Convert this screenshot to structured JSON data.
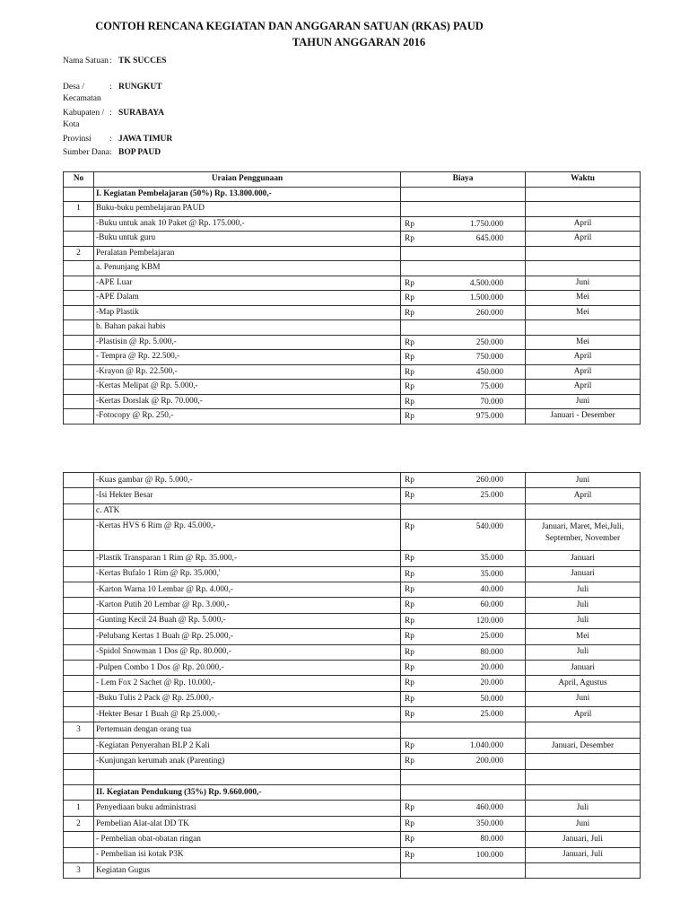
{
  "title": "CONTOH RENCANA KEGIATAN DAN ANGGARAN SATUAN (RKAS) PAUD",
  "subtitle": "TAHUN ANGGARAN 2016",
  "info": [
    {
      "label": "Nama Satuan",
      "value": "TK SUCCES"
    },
    {
      "label": "Desa / Kecamatan",
      "value": "RUNGKUT"
    },
    {
      "label": "Kabupaten / Kota",
      "value": "SURABAYA"
    },
    {
      "label": "Provinsi",
      "value": "JAWA TIMUR"
    },
    {
      "label": "Sumber Dana",
      "value": "BOP PAUD"
    }
  ],
  "colon": ":",
  "headers": {
    "no": "No",
    "uraian": "Uraian Penggunaan",
    "biaya": "Biaya",
    "waktu": "Waktu"
  },
  "table1": [
    {
      "no": "",
      "desc": "I. Kegiatan Pembelajaran (50%) Rp. 13.800.000,-",
      "bold": true
    },
    {
      "no": "1",
      "desc": "Buku-buku pembelajaran PAUD"
    },
    {
      "no": "",
      "desc": "-Buku untuk anak 10  Paket @ Rp. 175.000,-",
      "rp": "Rp",
      "amount": "1.750.000",
      "time": "April"
    },
    {
      "no": "",
      "desc": "-Buku untuk guru",
      "rp": "Rp",
      "amount": "645.000",
      "time": "April"
    },
    {
      "no": "2",
      "desc": "Peralatan Pembelajaran"
    },
    {
      "no": "",
      "desc": "a. Penunjang KBM"
    },
    {
      "no": "",
      "desc": "-APE Luar",
      "rp": "Rp",
      "amount": "4.500.000",
      "time": "Juni"
    },
    {
      "no": "",
      "desc": "-APE Dalam",
      "rp": "Rp",
      "amount": "1.500.000",
      "time": "Mei"
    },
    {
      "no": "",
      "desc": "-Map Plastik",
      "rp": "Rp",
      "amount": "260.000",
      "time": "Mei"
    },
    {
      "no": "",
      "desc": "b. Bahan pakai habis"
    },
    {
      "no": "",
      "desc": "-Plastisin @ Rp. 5.000,-",
      "rp": "Rp",
      "amount": "250.000",
      "time": "Mei"
    },
    {
      "no": "",
      "desc": "- Tempra @ Rp. 22.500,-",
      "rp": "Rp",
      "amount": "750.000",
      "time": "April"
    },
    {
      "no": "",
      "desc": "-Krayon @ Rp. 22.500,-",
      "rp": "Rp",
      "amount": "450.000",
      "time": "April"
    },
    {
      "no": "",
      "desc": "-Kertas Melipat @ Rp. 5.000,-",
      "rp": "Rp",
      "amount": "75.000",
      "time": "April"
    },
    {
      "no": "",
      "desc": "-Kertas Dorslak @ Rp. 70.000,-",
      "rp": "Rp",
      "amount": "70.000",
      "time": "Juni"
    },
    {
      "no": "",
      "desc": "-Fotocopy @ Rp. 250,-",
      "rp": "Rp",
      "amount": "975.000",
      "time": "Januari - Desember"
    }
  ],
  "table2": [
    {
      "no": "",
      "desc": "-Kuas gambar @ Rp. 5.000,-",
      "rp": "Rp",
      "amount": "260.000",
      "time": "Juni"
    },
    {
      "no": "",
      "desc": "-Isi Hekter Besar",
      "rp": "Rp",
      "amount": "25.000",
      "time": "April"
    },
    {
      "no": "",
      "desc": "c. ATK"
    },
    {
      "no": "",
      "desc": "-Kertas HVS 6 Rim @ Rp. 45.000,-",
      "rp": "Rp",
      "amount": "540.000",
      "time": "Januari, Maret, Mei,Juli, September, November"
    },
    {
      "no": "",
      "desc": "-Plastik Transparan 1 Rim @ Rp. 35.000,-",
      "rp": "Rp",
      "amount": "35.000",
      "time": "Januari"
    },
    {
      "no": "",
      "desc": "-Kertas Bufalo 1 Rim @ Rp. 35.000,'",
      "rp": "Rp",
      "amount": "35.000",
      "time": "Januari"
    },
    {
      "no": "",
      "desc": "-Karton Warna 10 Lembar @ Rp. 4.000,-",
      "rp": "Rp",
      "amount": "40.000",
      "time": "Juli"
    },
    {
      "no": "",
      "desc": "-Karton Putih 20 Lembar @ Rp. 3.000,-",
      "rp": "Rp",
      "amount": "60.000",
      "time": "Juli"
    },
    {
      "no": "",
      "desc": "-Gunting Kecil 24 Buah @ Rp. 5.000,-",
      "rp": "Rp",
      "amount": "120.000",
      "time": "Juli"
    },
    {
      "no": "",
      "desc": "-Pelubang Kertas 1 Buah @ Rp. 25.000,-",
      "rp": "Rp",
      "amount": "25.000",
      "time": "Mei"
    },
    {
      "no": "",
      "desc": "-Spidol Snowman 1 Dos @ Rp. 80.000,-",
      "rp": "Rp",
      "amount": "80.000",
      "time": "Juli"
    },
    {
      "no": "",
      "desc": "-Pulpen Combo 1 Dos @ Rp. 20.000,-",
      "rp": "Rp",
      "amount": "20.000",
      "time": "Januari"
    },
    {
      "no": "",
      "desc": "- Lem Fox 2 Sachet @ Rp. 10.000,-",
      "rp": "Rp",
      "amount": "20.000",
      "time": "April, Agustus"
    },
    {
      "no": "",
      "desc": "-Buku Tulis 2 Pack @ Rp. 25.000,-",
      "rp": "Rp",
      "amount": "50.000",
      "time": "Juni"
    },
    {
      "no": "",
      "desc": "-Hekter Besar 1 Buah @ Rp 25.000,-",
      "rp": "Rp",
      "amount": "25.000",
      "time": "April"
    },
    {
      "no": "3",
      "desc": "Pertemuan dengan orang tua"
    },
    {
      "no": "",
      "desc": "-Kegiatan Penyerahan BLP 2 Kali",
      "rp": "Rp",
      "amount": "1.040.000",
      "time": "Januari, Desember"
    },
    {
      "no": "",
      "desc": "-Kunjungan kerumah anak (Parenting)",
      "rp": "Rp",
      "amount": "200.000",
      "time": ""
    },
    {
      "no": "",
      "desc": ""
    },
    {
      "no": "",
      "desc": "II. Kegiatan Pendukung (35%) Rp. 9.660.000,-",
      "bold": true
    },
    {
      "no": "1",
      "desc": "Penyediaan buku administrasi",
      "rp": "Rp",
      "amount": "460.000",
      "time": "Juli"
    },
    {
      "no": "2",
      "desc": "Pembelian Alat-alat DD TK",
      "rp": "Rp",
      "amount": "350.000",
      "time": "Juni"
    },
    {
      "no": "",
      "desc": "- Pembelian obat-obatan ringan",
      "rp": "Rp",
      "amount": "80.000",
      "time": "Januari, Juli"
    },
    {
      "no": "",
      "desc": "- Pembelian isi kotak P3K",
      "rp": "Rp",
      "amount": "100.000",
      "time": "Januari, Juli"
    },
    {
      "no": "3",
      "desc": "Kegiatan Gugus"
    }
  ]
}
